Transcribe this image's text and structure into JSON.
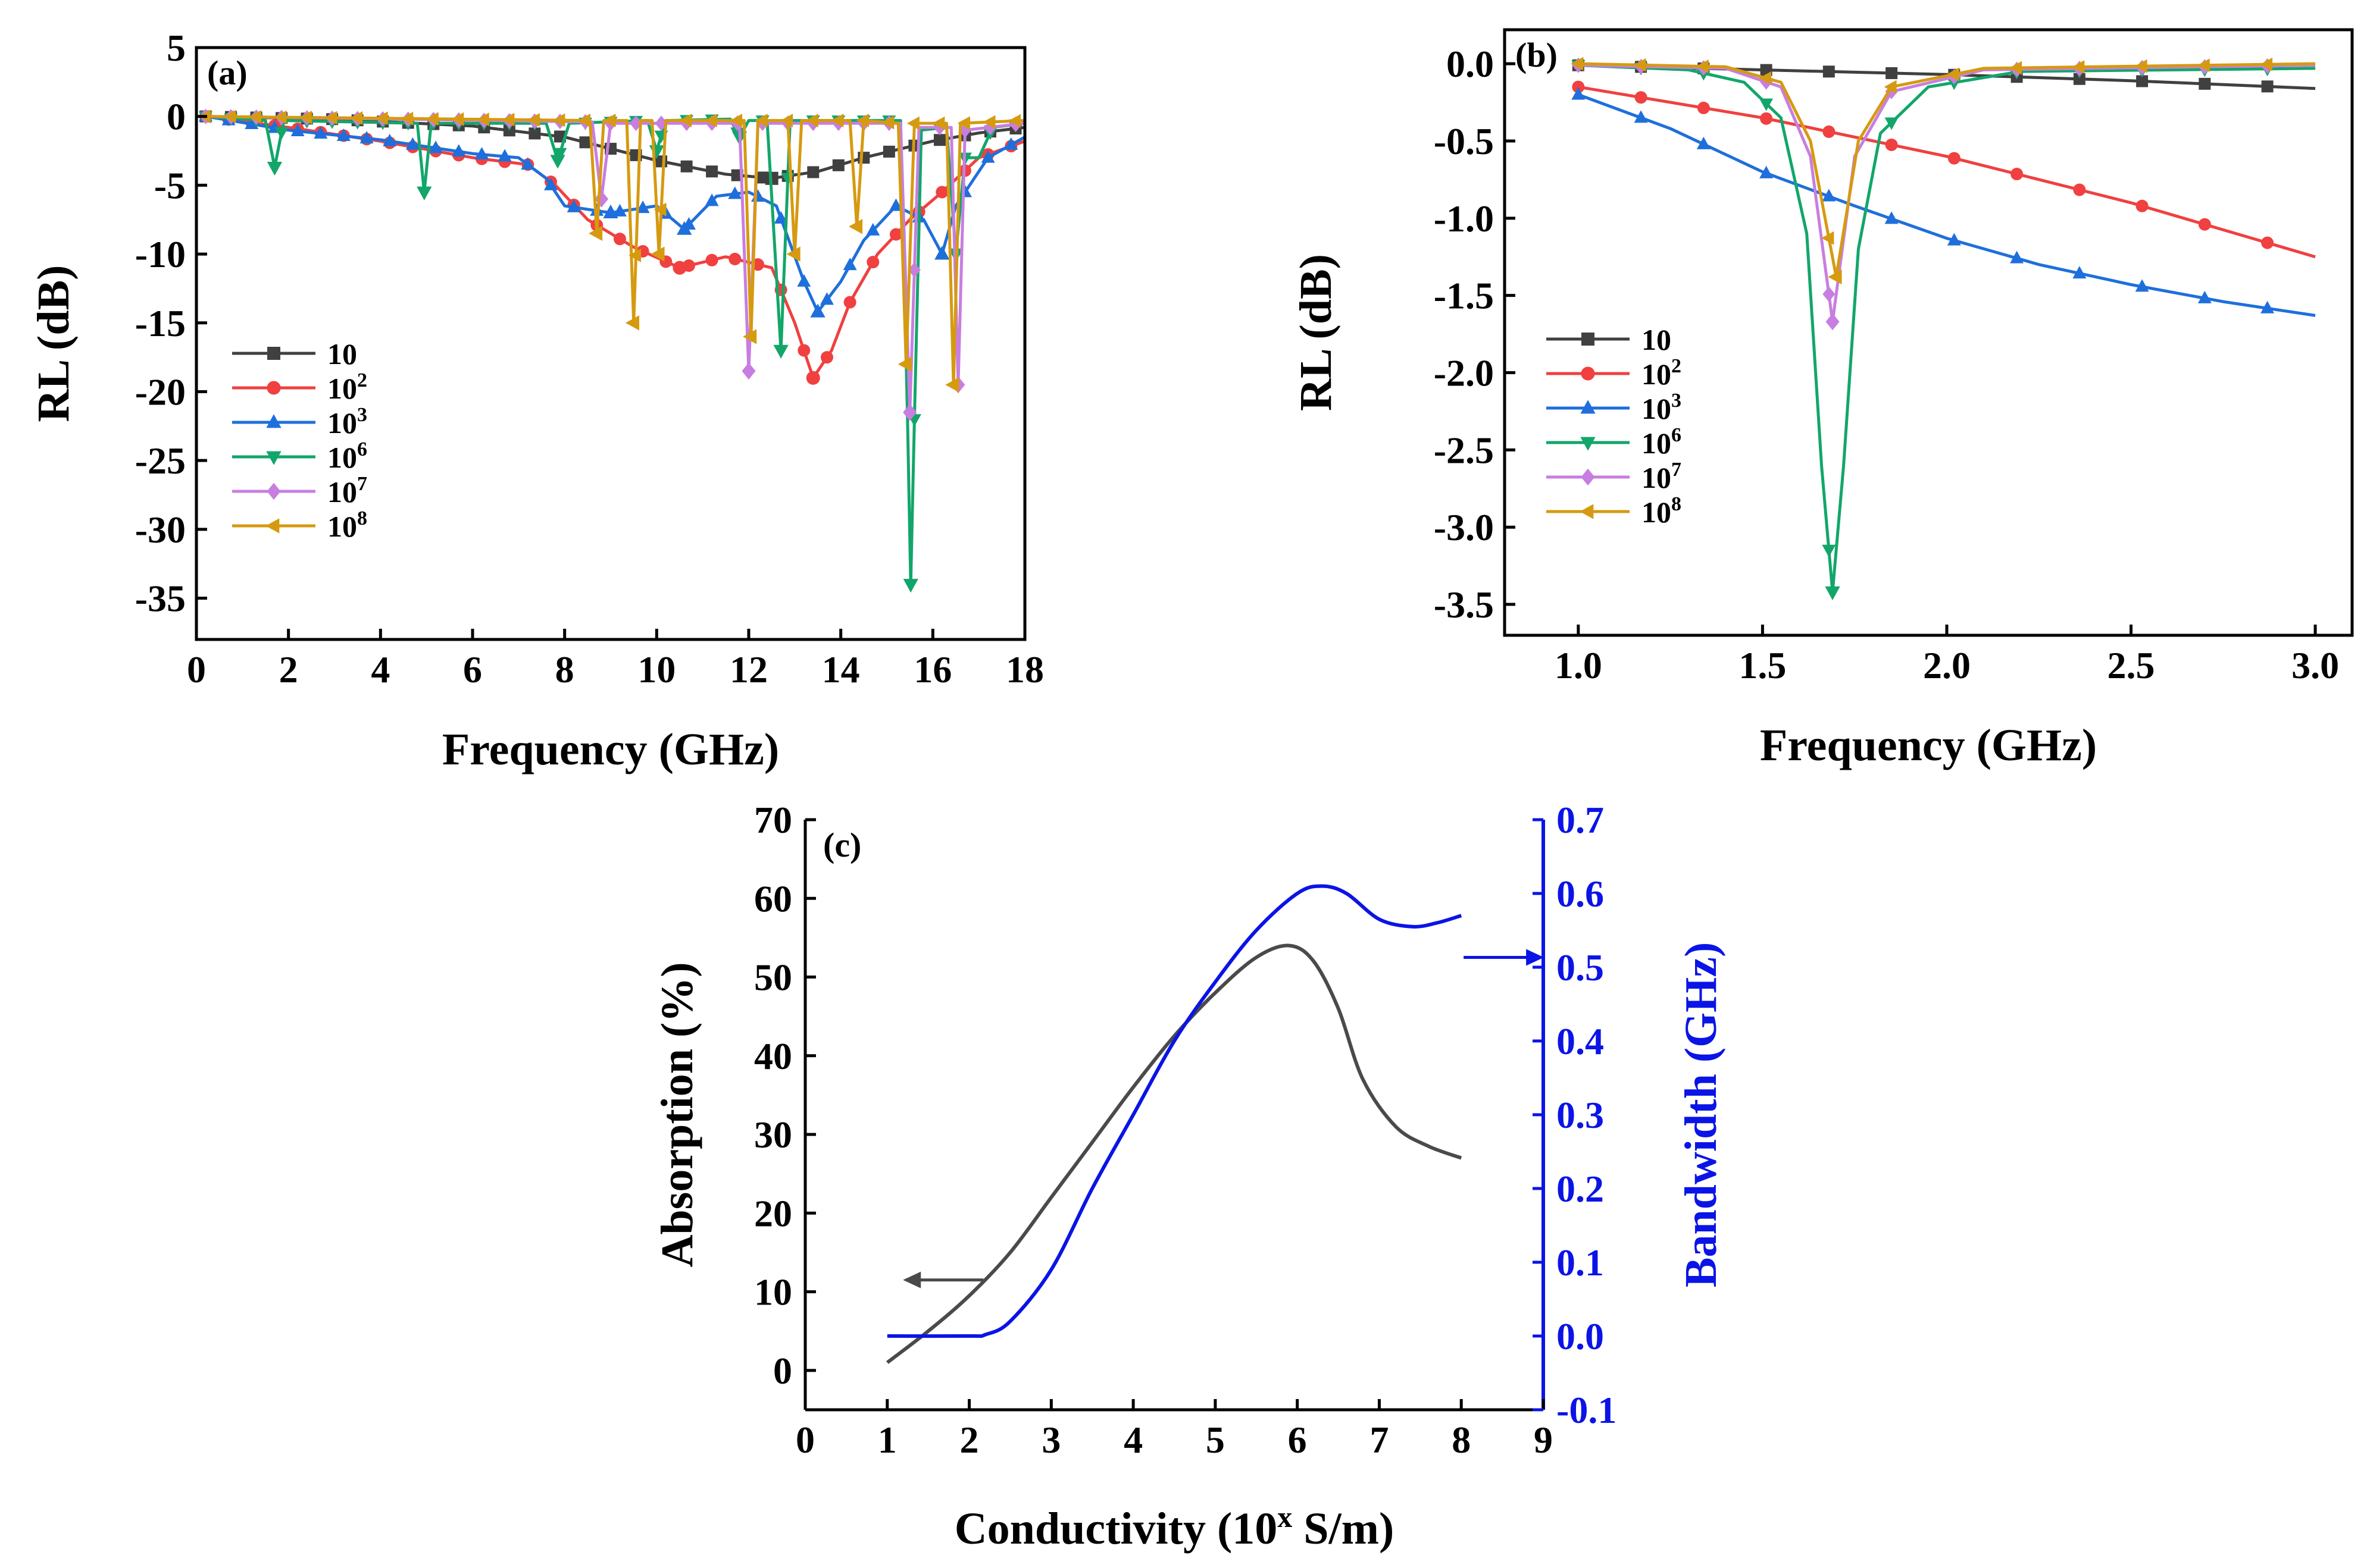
{
  "colors": {
    "k10": "#404040",
    "k100": "#f04040",
    "k1000": "#1e6fdc",
    "k1e6": "#12a66a",
    "k1e7": "#c87ee0",
    "k1e8": "#d69a10",
    "absorption": "#4a4a4a",
    "bandwidth": "#0a14e6",
    "axis_right": "#0a14e6"
  },
  "chart_data": [
    {
      "panel": "(a)",
      "type": "line",
      "xlabel": "Frequency (GHz)",
      "ylabel": "RL (dB)",
      "xlim": [
        0,
        18
      ],
      "ylim": [
        -38,
        5
      ],
      "xticks": [
        "0",
        "2",
        "4",
        "6",
        "8",
        "10",
        "12",
        "14",
        "16",
        "18"
      ],
      "yticks": [
        "5",
        "0",
        "-5",
        "-10",
        "-15",
        "-20",
        "-25",
        "-30",
        "-35"
      ],
      "legend_position": "left",
      "series": [
        {
          "name": "10",
          "sup": "",
          "color_key": "k10",
          "marker": "square",
          "marker_every": 0.55,
          "points": [
            [
              0.2,
              0
            ],
            [
              3,
              -0.2
            ],
            [
              6,
              -0.7
            ],
            [
              8,
              -1.5
            ],
            [
              10,
              -3.2
            ],
            [
              11.5,
              -4.2
            ],
            [
              12.5,
              -4.5
            ],
            [
              13.5,
              -4
            ],
            [
              14.5,
              -3
            ],
            [
              16,
              -1.8
            ],
            [
              17,
              -1.2
            ],
            [
              18,
              -0.8
            ]
          ]
        },
        {
          "name": "10",
          "sup": "2",
          "color_key": "k100",
          "marker": "circle",
          "marker_every": 0.5,
          "points": [
            [
              0.2,
              0
            ],
            [
              2,
              -0.8
            ],
            [
              4,
              -1.8
            ],
            [
              6,
              -3
            ],
            [
              7.2,
              -3.5
            ],
            [
              7.8,
              -5
            ],
            [
              8.5,
              -7.5
            ],
            [
              9.5,
              -9.5
            ],
            [
              10.5,
              -11
            ],
            [
              11.5,
              -10.2
            ],
            [
              12.5,
              -11
            ],
            [
              13,
              -15
            ],
            [
              13.4,
              -19
            ],
            [
              13.8,
              -17
            ],
            [
              14.2,
              -13.5
            ],
            [
              14.8,
              -10
            ],
            [
              15.5,
              -7.5
            ],
            [
              16.2,
              -5.5
            ],
            [
              17,
              -3
            ],
            [
              18,
              -1.8
            ]
          ]
        },
        {
          "name": "10",
          "sup": "3",
          "color_key": "k1000",
          "marker": "triangle-up",
          "marker_every": 0.5,
          "points": [
            [
              0.2,
              0
            ],
            [
              2,
              -1
            ],
            [
              4,
              -1.7
            ],
            [
              5,
              -2.2
            ],
            [
              6,
              -2.7
            ],
            [
              7,
              -3
            ],
            [
              7.6,
              -4.5
            ],
            [
              8,
              -6.5
            ],
            [
              9,
              -7
            ],
            [
              10,
              -6.5
            ],
            [
              10.6,
              -8.2
            ],
            [
              11.3,
              -5.8
            ],
            [
              12,
              -5.5
            ],
            [
              12.6,
              -6.5
            ],
            [
              13.2,
              -12
            ],
            [
              13.5,
              -14.2
            ],
            [
              14,
              -12
            ],
            [
              14.5,
              -9
            ],
            [
              15.2,
              -6.5
            ],
            [
              15.8,
              -7.5
            ],
            [
              16.2,
              -10
            ],
            [
              16.5,
              -6.5
            ],
            [
              17.2,
              -3
            ],
            [
              18,
              -1.5
            ]
          ]
        },
        {
          "name": "10",
          "sup": "6",
          "color_key": "k1e6",
          "marker": "triangle-down",
          "marker_every": 0.55,
          "points": [
            [
              0.2,
              0
            ],
            [
              1.5,
              -0.3
            ],
            [
              1.7,
              -3.7
            ],
            [
              1.9,
              -0.3
            ],
            [
              4.8,
              -0.5
            ],
            [
              4.95,
              -5.5
            ],
            [
              5.1,
              -0.5
            ],
            [
              7.6,
              -0.5
            ],
            [
              7.85,
              -3.2
            ],
            [
              8.1,
              -0.5
            ],
            [
              9.8,
              -0.3
            ],
            [
              10,
              -2.5
            ],
            [
              10.2,
              -0.3
            ],
            [
              11.6,
              -0.2
            ],
            [
              11.8,
              -1.5
            ],
            [
              12,
              -0.3
            ],
            [
              12.4,
              -0.3
            ],
            [
              12.7,
              -17
            ],
            [
              12.9,
              -0.3
            ],
            [
              15.3,
              -0.3
            ],
            [
              15.45,
              -22
            ],
            [
              15.52,
              -34
            ],
            [
              15.6,
              -22
            ],
            [
              15.75,
              -1
            ],
            [
              16.3,
              -0.8
            ],
            [
              16.5,
              -10
            ],
            [
              16.7,
              -3
            ],
            [
              17,
              -3
            ],
            [
              17.3,
              -0.8
            ],
            [
              18,
              -0.5
            ]
          ]
        },
        {
          "name": "10",
          "sup": "7",
          "color_key": "k1e7",
          "marker": "diamond",
          "marker_every": 0.55,
          "points": [
            [
              0.2,
              0
            ],
            [
              8.6,
              -0.4
            ],
            [
              8.8,
              -6
            ],
            [
              9,
              -0.5
            ],
            [
              11.8,
              -0.5
            ],
            [
              12,
              -18.5
            ],
            [
              12.2,
              -0.5
            ],
            [
              15.3,
              -0.5
            ],
            [
              15.5,
              -21.5
            ],
            [
              15.7,
              -0.8
            ],
            [
              16.4,
              -0.8
            ],
            [
              16.55,
              -19.5
            ],
            [
              16.7,
              -1
            ],
            [
              18,
              -0.5
            ]
          ]
        },
        {
          "name": "10",
          "sup": "8",
          "color_key": "k1e8",
          "marker": "triangle-left",
          "marker_every": 0.55,
          "points": [
            [
              0.2,
              0
            ],
            [
              8.55,
              -0.3
            ],
            [
              8.7,
              -8.5
            ],
            [
              8.85,
              -0.3
            ],
            [
              9.35,
              -0.3
            ],
            [
              9.5,
              -15
            ],
            [
              9.65,
              -0.3
            ],
            [
              9.9,
              -0.3
            ],
            [
              10.05,
              -10
            ],
            [
              10.2,
              -0.3
            ],
            [
              11.9,
              -0.3
            ],
            [
              12.05,
              -16
            ],
            [
              12.2,
              -0.3
            ],
            [
              12.85,
              -0.3
            ],
            [
              13,
              -10
            ],
            [
              13.15,
              -0.3
            ],
            [
              14.2,
              -0.3
            ],
            [
              14.35,
              -8
            ],
            [
              14.5,
              -0.3
            ],
            [
              15.25,
              -0.5
            ],
            [
              15.42,
              -18
            ],
            [
              15.6,
              -0.5
            ],
            [
              16.3,
              -0.5
            ],
            [
              16.45,
              -19.5
            ],
            [
              16.6,
              -0.5
            ],
            [
              18,
              -0.3
            ]
          ]
        }
      ]
    },
    {
      "panel": "(b)",
      "type": "line",
      "xlabel": "Frequency (GHz)",
      "ylabel": "RL (dB)",
      "xlim": [
        0.8,
        3.1
      ],
      "ylim": [
        -3.7,
        0.22
      ],
      "xticks": [
        "1.0",
        "1.5",
        "2.0",
        "2.5",
        "3.0"
      ],
      "yticks": [
        "0.0",
        "-0.5",
        "-1.0",
        "-1.5",
        "-2.0",
        "-2.5",
        "-3.0",
        "-3.5"
      ],
      "legend_position": "left",
      "series": [
        {
          "name": "10",
          "sup": "",
          "color_key": "k10",
          "marker": "square",
          "marker_every": 0.17,
          "points": [
            [
              1,
              -0.01
            ],
            [
              1.5,
              -0.04
            ],
            [
              2,
              -0.07
            ],
            [
              2.5,
              -0.11
            ],
            [
              3,
              -0.16
            ]
          ]
        },
        {
          "name": "10",
          "sup": "2",
          "color_key": "k100",
          "marker": "circle",
          "marker_every": 0.17,
          "points": [
            [
              1,
              -0.15
            ],
            [
              1.5,
              -0.35
            ],
            [
              2,
              -0.6
            ],
            [
              2.5,
              -0.9
            ],
            [
              3,
              -1.25
            ]
          ]
        },
        {
          "name": "10",
          "sup": "3",
          "color_key": "k1000",
          "marker": "triangle-up",
          "marker_every": 0.17,
          "points": [
            [
              1,
              -0.2
            ],
            [
              1.25,
              -0.42
            ],
            [
              1.5,
              -0.7
            ],
            [
              1.75,
              -0.92
            ],
            [
              2,
              -1.13
            ],
            [
              2.25,
              -1.3
            ],
            [
              2.5,
              -1.43
            ],
            [
              2.75,
              -1.54
            ],
            [
              3,
              -1.63
            ]
          ]
        },
        {
          "name": "10",
          "sup": "6",
          "color_key": "k1e6",
          "marker": "triangle-down",
          "marker_every": 0.17,
          "points": [
            [
              1,
              -0.01
            ],
            [
              1.3,
              -0.04
            ],
            [
              1.45,
              -0.12
            ],
            [
              1.55,
              -0.35
            ],
            [
              1.62,
              -1.1
            ],
            [
              1.66,
              -2.6
            ],
            [
              1.69,
              -3.42
            ],
            [
              1.72,
              -2.6
            ],
            [
              1.76,
              -1.2
            ],
            [
              1.82,
              -0.45
            ],
            [
              1.95,
              -0.15
            ],
            [
              2.2,
              -0.05
            ],
            [
              3,
              -0.03
            ]
          ]
        },
        {
          "name": "10",
          "sup": "7",
          "color_key": "k1e7",
          "marker": "diamond",
          "marker_every": 0.17,
          "points": [
            [
              1,
              -0.01
            ],
            [
              1.4,
              -0.03
            ],
            [
              1.55,
              -0.15
            ],
            [
              1.63,
              -0.6
            ],
            [
              1.69,
              -1.67
            ],
            [
              1.75,
              -0.6
            ],
            [
              1.85,
              -0.18
            ],
            [
              2.1,
              -0.04
            ],
            [
              3,
              -0.01
            ]
          ]
        },
        {
          "name": "10",
          "sup": "8",
          "color_key": "k1e8",
          "marker": "triangle-left",
          "marker_every": 0.17,
          "points": [
            [
              1,
              0
            ],
            [
              1.4,
              -0.02
            ],
            [
              1.55,
              -0.12
            ],
            [
              1.63,
              -0.5
            ],
            [
              1.7,
              -1.38
            ],
            [
              1.76,
              -0.5
            ],
            [
              1.85,
              -0.15
            ],
            [
              2.1,
              -0.03
            ],
            [
              3,
              0
            ]
          ]
        }
      ]
    },
    {
      "panel": "(c)",
      "type": "line",
      "xlabel": "Conductivity (10",
      "xlabel_sup": "x",
      "xlabel_tail": " S/m)",
      "ylabel": "Absorption (%)",
      "ylabel_right": "Bandwidth (GHz)",
      "xlim": [
        0,
        9
      ],
      "ylim": [
        -5,
        70
      ],
      "ylim_right": [
        -0.1,
        0.7
      ],
      "xticks": [
        "0",
        "1",
        "2",
        "3",
        "4",
        "5",
        "6",
        "7",
        "8",
        "9"
      ],
      "yticks": [
        "0",
        "10",
        "20",
        "30",
        "40",
        "50",
        "60",
        "70"
      ],
      "yticks_right": [
        "-0.1",
        "0.0",
        "0.1",
        "0.2",
        "0.3",
        "0.4",
        "0.5",
        "0.6",
        "0.7"
      ],
      "series": [
        {
          "name": "Absorption",
          "axis": "left",
          "color_key": "absorption",
          "points": [
            [
              1,
              1
            ],
            [
              1.5,
              5
            ],
            [
              2,
              9.5
            ],
            [
              2.5,
              15
            ],
            [
              3,
              22
            ],
            [
              3.5,
              29
            ],
            [
              4,
              36
            ],
            [
              4.5,
              42.5
            ],
            [
              5,
              48
            ],
            [
              5.5,
              52.5
            ],
            [
              5.9,
              54
            ],
            [
              6.2,
              52
            ],
            [
              6.5,
              46
            ],
            [
              6.8,
              37
            ],
            [
              7.2,
              31
            ],
            [
              7.6,
              28.5
            ],
            [
              8,
              27
            ]
          ]
        },
        {
          "name": "Bandwidth",
          "axis": "right",
          "color_key": "bandwidth",
          "points": [
            [
              1,
              0
            ],
            [
              2,
              0
            ],
            [
              2.2,
              0.002
            ],
            [
              2.5,
              0.02
            ],
            [
              3,
              0.09
            ],
            [
              3.5,
              0.2
            ],
            [
              4,
              0.3
            ],
            [
              4.5,
              0.4
            ],
            [
              5,
              0.48
            ],
            [
              5.5,
              0.55
            ],
            [
              6,
              0.6
            ],
            [
              6.3,
              0.61
            ],
            [
              6.6,
              0.6
            ],
            [
              7,
              0.565
            ],
            [
              7.4,
              0.555
            ],
            [
              7.7,
              0.56
            ],
            [
              8,
              0.57
            ]
          ]
        }
      ],
      "arrows": [
        {
          "direction": "left",
          "color_key": "absorption",
          "at": [
            1.7,
            11.5
          ]
        },
        {
          "direction": "right",
          "color_key": "bandwidth",
          "at": [
            8.5,
            52.5
          ]
        }
      ]
    }
  ]
}
